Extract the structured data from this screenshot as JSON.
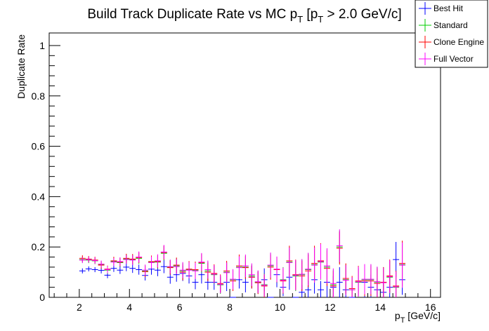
{
  "chart_data": {
    "type": "scatter",
    "title": "Build Track Duplicate Rate vs MC p",
    "title_sub1": "T",
    "title_mid": " [p",
    "title_sub2": "T",
    "title_end": " > 2.0 GeV/c]",
    "xlabel": "p",
    "xlabel_sub": "T",
    "xlabel_unit": " [GeV/c]",
    "ylabel": "Duplicate Rate",
    "xlim": [
      0.8,
      16.4
    ],
    "ylim": [
      0,
      1.05
    ],
    "x_ticks": [
      2,
      4,
      6,
      8,
      10,
      12,
      14,
      16
    ],
    "x_tick_labels": [
      "2",
      "4",
      "6",
      "8",
      "10",
      "12",
      "14",
      "16"
    ],
    "y_ticks": [
      0,
      0.2,
      0.4,
      0.6,
      0.8,
      1
    ],
    "y_tick_labels": [
      "0",
      "0.2",
      "0.4",
      "0.6",
      "0.8",
      "1"
    ],
    "x_bin_width": 0.25,
    "legend_position": "top-right",
    "series": [
      {
        "name": "Best Hit",
        "color": "#0000ff",
        "x": [
          2.125,
          2.375,
          2.625,
          2.875,
          3.125,
          3.375,
          3.625,
          3.875,
          4.125,
          4.375,
          4.625,
          4.875,
          5.125,
          5.375,
          5.625,
          5.875,
          6.125,
          6.375,
          6.625,
          6.875,
          7.125,
          7.375,
          7.625,
          7.875,
          8.125,
          8.375,
          8.625,
          8.875,
          9.125,
          9.375,
          9.625,
          9.875,
          10.125,
          10.375,
          10.625,
          10.875,
          11.125,
          11.375,
          11.625,
          11.875,
          12.125,
          12.375,
          12.625,
          12.875,
          13.125,
          13.375,
          13.625,
          13.875,
          14.125,
          14.375,
          14.625,
          14.875
        ],
        "y": [
          0.105,
          0.113,
          0.11,
          0.107,
          0.088,
          0.115,
          0.108,
          0.12,
          0.115,
          0.11,
          0.087,
          0.112,
          0.108,
          0.122,
          0.08,
          0.09,
          0.095,
          0.085,
          0.06,
          0.09,
          0.06,
          0.06,
          0.05,
          0.06,
          0.0,
          0.07,
          0.06,
          0.08,
          0.06,
          0.07,
          0.0,
          0.09,
          0.04,
          0.08,
          0.0,
          0.02,
          0.03,
          0.07,
          0.03,
          0.06,
          0.04,
          0.06,
          0.03,
          0.0,
          0.06,
          0.06,
          0.04,
          0.03,
          0.02,
          0.04,
          0.15,
          0.07
        ],
        "err": [
          0.01,
          0.01,
          0.01,
          0.012,
          0.012,
          0.014,
          0.015,
          0.016,
          0.018,
          0.02,
          0.02,
          0.022,
          0.024,
          0.026,
          0.026,
          0.028,
          0.03,
          0.03,
          0.028,
          0.035,
          0.03,
          0.03,
          0.03,
          0.035,
          0.0,
          0.035,
          0.04,
          0.045,
          0.04,
          0.045,
          0.0,
          0.05,
          0.035,
          0.05,
          0.0,
          0.03,
          0.035,
          0.055,
          0.035,
          0.06,
          0.045,
          0.06,
          0.04,
          0.0,
          0.055,
          0.06,
          0.05,
          0.045,
          0.04,
          0.05,
          0.07,
          0.06
        ]
      },
      {
        "name": "Standard",
        "color": "#00cc00",
        "x": [
          2.125,
          2.375,
          2.625,
          2.875,
          3.125,
          3.375,
          3.625,
          3.875,
          4.125,
          4.375,
          4.625,
          4.875,
          5.125,
          5.375,
          5.625,
          5.875,
          6.125,
          6.375,
          6.625,
          6.875,
          7.125,
          7.375,
          7.625,
          7.875,
          8.125,
          8.375,
          8.625,
          8.875,
          9.125,
          9.375,
          9.625,
          9.875,
          10.125,
          10.375,
          10.625,
          10.875,
          11.125,
          11.375,
          11.625,
          11.875,
          12.125,
          12.375,
          12.625,
          12.875,
          13.125,
          13.375,
          13.625,
          13.875,
          14.125,
          14.375,
          14.625,
          14.875
        ],
        "y": [
          0.15,
          0.148,
          0.145,
          0.13,
          0.108,
          0.142,
          0.138,
          0.152,
          0.15,
          0.155,
          0.105,
          0.14,
          0.14,
          0.175,
          0.12,
          0.125,
          0.105,
          0.11,
          0.108,
          0.135,
          0.105,
          0.09,
          0.05,
          0.1,
          0.07,
          0.12,
          0.12,
          0.085,
          0.06,
          0.05,
          0.125,
          0.11,
          0.07,
          0.14,
          0.085,
          0.09,
          0.11,
          0.13,
          0.14,
          0.12,
          0.05,
          0.2,
          0.07,
          0.03,
          0.06,
          0.07,
          0.07,
          0.06,
          0.06,
          0.08,
          0.04,
          0.13
        ],
        "err": [
          0.012,
          0.012,
          0.013,
          0.014,
          0.014,
          0.016,
          0.017,
          0.018,
          0.02,
          0.022,
          0.022,
          0.024,
          0.026,
          0.028,
          0.028,
          0.03,
          0.032,
          0.032,
          0.032,
          0.036,
          0.036,
          0.036,
          0.036,
          0.04,
          0.04,
          0.045,
          0.045,
          0.045,
          0.045,
          0.045,
          0.05,
          0.05,
          0.05,
          0.06,
          0.06,
          0.06,
          0.065,
          0.07,
          0.07,
          0.07,
          0.06,
          0.065,
          0.06,
          0.05,
          0.06,
          0.06,
          0.06,
          0.06,
          0.06,
          0.065,
          0.06,
          0.09
        ]
      },
      {
        "name": "Clone Engine",
        "color": "#ff0000",
        "x": [
          2.125,
          2.375,
          2.625,
          2.875,
          3.125,
          3.375,
          3.625,
          3.875,
          4.125,
          4.375,
          4.625,
          4.875,
          5.125,
          5.375,
          5.625,
          5.875,
          6.125,
          6.375,
          6.625,
          6.875,
          7.125,
          7.375,
          7.625,
          7.875,
          8.125,
          8.375,
          8.625,
          8.875,
          9.125,
          9.375,
          9.625,
          9.875,
          10.125,
          10.375,
          10.625,
          10.875,
          11.125,
          11.375,
          11.625,
          11.875,
          12.125,
          12.375,
          12.625,
          12.875,
          13.125,
          13.375,
          13.625,
          13.875,
          14.125,
          14.375,
          14.625,
          14.875
        ],
        "y": [
          0.155,
          0.152,
          0.148,
          0.128,
          0.112,
          0.145,
          0.14,
          0.155,
          0.152,
          0.158,
          0.102,
          0.142,
          0.142,
          0.178,
          0.118,
          0.128,
          0.1,
          0.112,
          0.11,
          0.138,
          0.1,
          0.095,
          0.055,
          0.105,
          0.065,
          0.125,
          0.118,
          0.08,
          0.058,
          0.045,
          0.12,
          0.11,
          0.065,
          0.145,
          0.09,
          0.085,
          0.105,
          0.135,
          0.145,
          0.115,
          0.045,
          0.195,
          0.075,
          0.035,
          0.065,
          0.065,
          0.065,
          0.055,
          0.06,
          0.085,
          0.045,
          0.135
        ],
        "err": [
          0.012,
          0.012,
          0.013,
          0.014,
          0.014,
          0.016,
          0.017,
          0.018,
          0.02,
          0.022,
          0.022,
          0.024,
          0.026,
          0.028,
          0.028,
          0.03,
          0.032,
          0.032,
          0.032,
          0.036,
          0.036,
          0.036,
          0.036,
          0.04,
          0.04,
          0.045,
          0.045,
          0.045,
          0.045,
          0.045,
          0.05,
          0.05,
          0.05,
          0.06,
          0.06,
          0.06,
          0.065,
          0.07,
          0.07,
          0.07,
          0.06,
          0.065,
          0.06,
          0.05,
          0.06,
          0.06,
          0.06,
          0.06,
          0.06,
          0.065,
          0.06,
          0.09
        ]
      },
      {
        "name": "Full Vector",
        "color": "#ff00ff",
        "x": [
          2.125,
          2.375,
          2.625,
          2.875,
          3.125,
          3.375,
          3.625,
          3.875,
          4.125,
          4.375,
          4.625,
          4.875,
          5.125,
          5.375,
          5.625,
          5.875,
          6.125,
          6.375,
          6.625,
          6.875,
          7.125,
          7.375,
          7.625,
          7.875,
          8.125,
          8.375,
          8.625,
          8.875,
          9.125,
          9.375,
          9.625,
          9.875,
          10.125,
          10.375,
          10.625,
          10.875,
          11.125,
          11.375,
          11.625,
          11.875,
          12.125,
          12.375,
          12.625,
          12.875,
          13.125,
          13.375,
          13.625,
          13.875,
          14.125,
          14.375,
          14.625,
          14.875
        ],
        "y": [
          0.148,
          0.15,
          0.146,
          0.132,
          0.11,
          0.14,
          0.142,
          0.15,
          0.148,
          0.16,
          0.108,
          0.138,
          0.145,
          0.18,
          0.122,
          0.122,
          0.108,
          0.108,
          0.105,
          0.14,
          0.11,
          0.092,
          0.052,
          0.098,
          0.072,
          0.118,
          0.125,
          0.09,
          0.062,
          0.048,
          0.128,
          0.112,
          0.068,
          0.138,
          0.088,
          0.092,
          0.112,
          0.128,
          0.142,
          0.125,
          0.055,
          0.205,
          0.068,
          0.03,
          0.062,
          0.072,
          0.072,
          0.062,
          0.058,
          0.082,
          0.042,
          0.128
        ],
        "err": [
          0.012,
          0.012,
          0.013,
          0.014,
          0.014,
          0.016,
          0.017,
          0.018,
          0.02,
          0.022,
          0.022,
          0.024,
          0.026,
          0.028,
          0.028,
          0.03,
          0.032,
          0.032,
          0.032,
          0.036,
          0.036,
          0.036,
          0.036,
          0.04,
          0.04,
          0.045,
          0.045,
          0.045,
          0.045,
          0.045,
          0.05,
          0.05,
          0.05,
          0.06,
          0.06,
          0.06,
          0.065,
          0.07,
          0.07,
          0.07,
          0.06,
          0.065,
          0.06,
          0.05,
          0.06,
          0.06,
          0.06,
          0.06,
          0.06,
          0.065,
          0.06,
          0.09
        ]
      }
    ]
  }
}
